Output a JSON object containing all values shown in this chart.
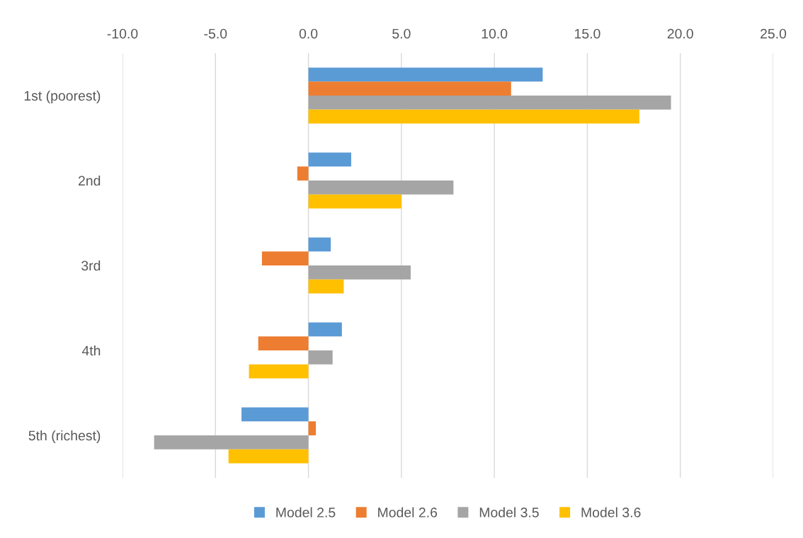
{
  "chart_data": {
    "type": "bar",
    "orientation": "horizontal",
    "categories": [
      "1st (poorest)",
      "2nd",
      "3rd",
      "4th",
      "5th (richest)"
    ],
    "series": [
      {
        "name": "Model 2.5",
        "color": "#5b9bd5",
        "values": [
          12.6,
          2.3,
          1.2,
          1.8,
          -3.6
        ]
      },
      {
        "name": "Model 2.6",
        "color": "#ed7d31",
        "values": [
          10.9,
          -0.6,
          -2.5,
          -2.7,
          0.4
        ]
      },
      {
        "name": "Model 3.5",
        "color": "#a5a5a5",
        "values": [
          19.5,
          7.8,
          5.5,
          1.3,
          -8.3
        ]
      },
      {
        "name": "Model 3.6",
        "color": "#ffc000",
        "values": [
          17.8,
          5.0,
          1.9,
          -3.2,
          -4.3
        ]
      }
    ],
    "xlim": [
      -10,
      25
    ],
    "xticks": [
      {
        "value": -10,
        "label": "-10.0"
      },
      {
        "value": -5,
        "label": "-5.0"
      },
      {
        "value": 0,
        "label": "0.0"
      },
      {
        "value": 5,
        "label": "5.0"
      },
      {
        "value": 10,
        "label": "10.0"
      },
      {
        "value": 15,
        "label": "15.0"
      },
      {
        "value": 20,
        "label": "20.0"
      },
      {
        "value": 25,
        "label": "25.0"
      }
    ],
    "grid": "x",
    "legend": "bottom"
  }
}
